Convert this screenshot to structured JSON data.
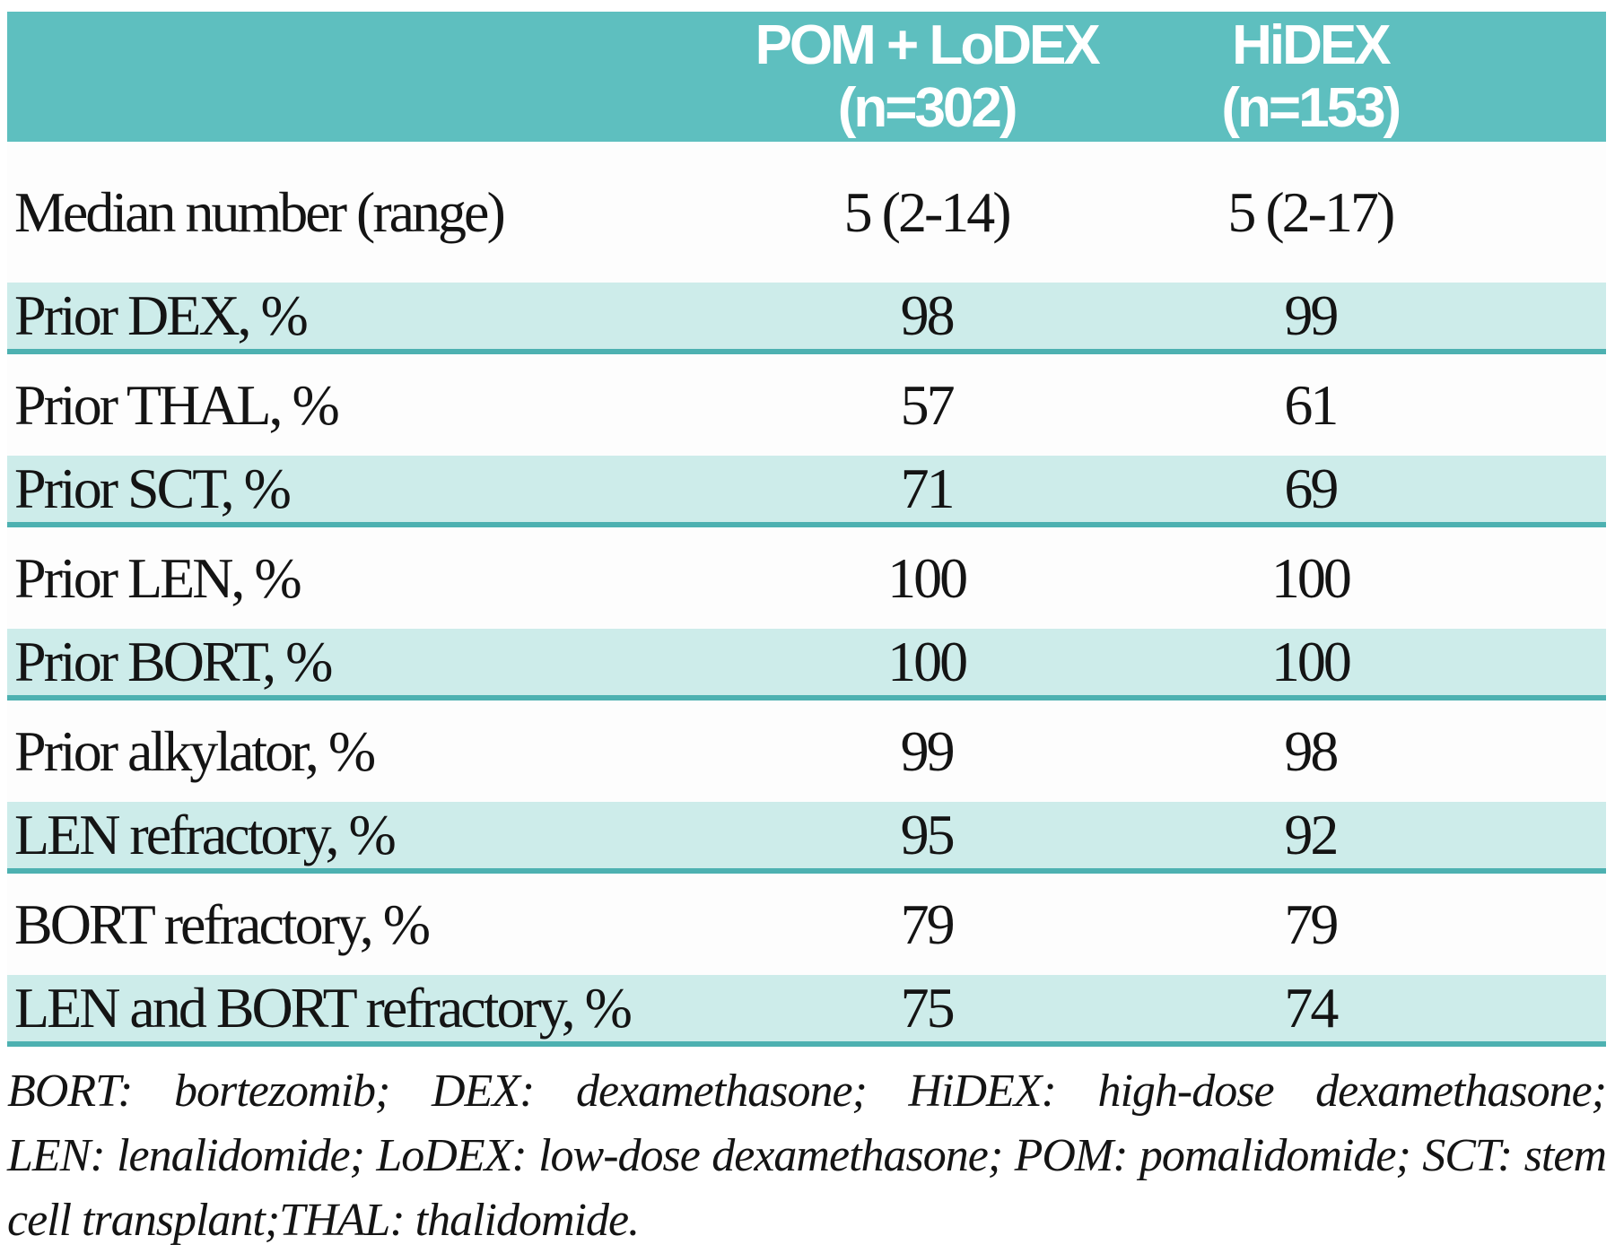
{
  "chart_data": {
    "type": "table",
    "title": "",
    "columns": [
      "",
      "POM + LoDEX (n=302)",
      "HiDEX (n=153)"
    ],
    "rows": [
      [
        "Median number (range)",
        "5 (2-14)",
        "5 (2-17)"
      ],
      [
        "Prior DEX, %",
        "98",
        "99"
      ],
      [
        "Prior THAL, %",
        "57",
        "61"
      ],
      [
        "Prior SCT, %",
        "71",
        "69"
      ],
      [
        "Prior LEN, %",
        "100",
        "100"
      ],
      [
        "Prior BORT, %",
        "100",
        "100"
      ],
      [
        "Prior alkylator, %",
        "99",
        "98"
      ],
      [
        "LEN refractory, %",
        "95",
        "92"
      ],
      [
        "BORT refractory, %",
        "79",
        "79"
      ],
      [
        "LEN and BORT refractory, %",
        "75",
        "74"
      ]
    ],
    "footnote": "BORT: bortezomib; DEX: dexamethasone; HiDEX: high-dose dexamethasone; LEN: lenalidomide; LoDEX: low-dose dexamethasone; POM: pomalidomide; SCT: stem cell transplant;THAL: thalidomide."
  },
  "header": {
    "col1_line1": "POM + LoDEX",
    "col1_line2": "(n=302)",
    "col2_line1": "HiDEX",
    "col2_line2": "(n=153)"
  },
  "footnote": {
    "line1": "BORT: bortezomib; DEX: dexamethasone; HiDEX: high-dose dexamethasone;",
    "line2": "LEN: lenalidomide; LoDEX: low-dose dexamethasone; POM: pomalidomide; SCT: stem",
    "line3": "cell transplant;THAL: thalidomide."
  },
  "colors": {
    "header_teal": "#5ebfbf",
    "row_teal": "#cdecea",
    "divider_teal": "#4db1b1",
    "text": "#141414"
  }
}
